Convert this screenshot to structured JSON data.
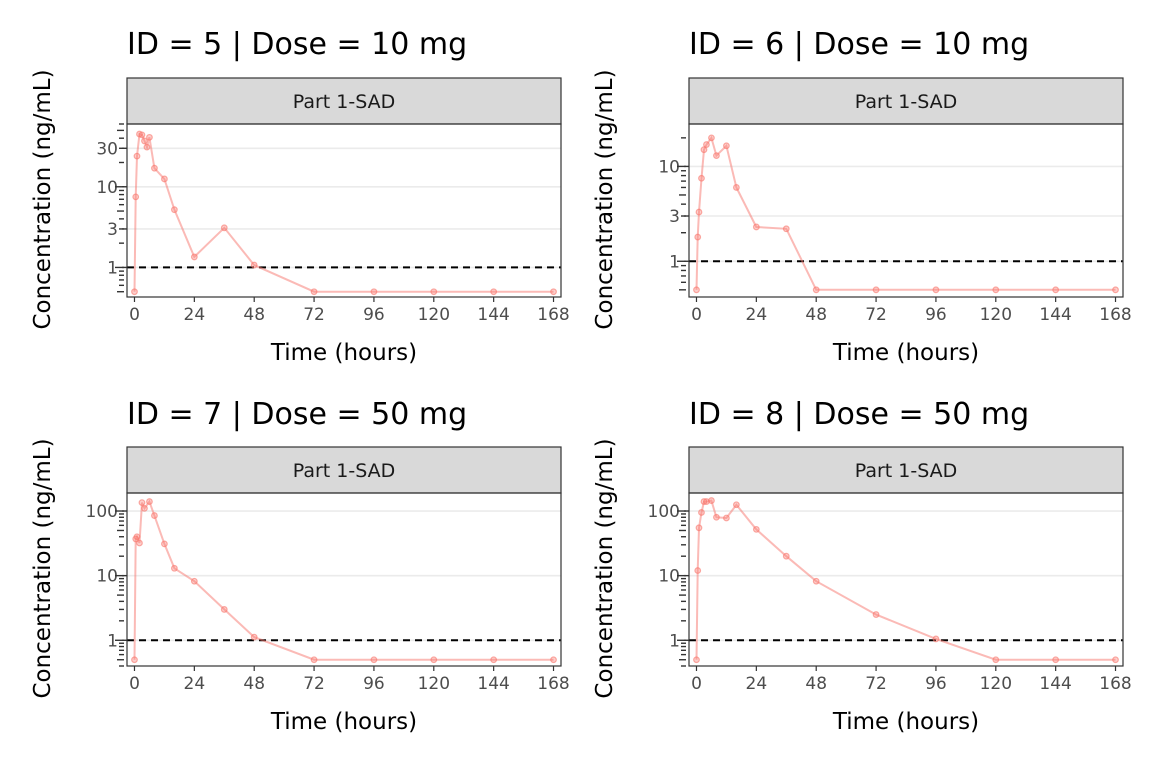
{
  "chart_data": [
    {
      "type": "line",
      "title": "ID = 5 | Dose = 10 mg",
      "strip": "Part 1-SAD",
      "xlabel": "Time (hours)",
      "ylabel": "Concentration (ng/mL)",
      "y_scale": "log10",
      "xlim": [
        -3,
        171
      ],
      "ylim": [
        0.43,
        60
      ],
      "x_ticks": [
        0,
        24,
        48,
        72,
        96,
        120,
        144,
        168
      ],
      "y_ticks": [
        1,
        3,
        10,
        30
      ],
      "reference_line": {
        "y": 1,
        "style": "dashed",
        "color": "#000000"
      },
      "series": [
        {
          "color": "#f8766d",
          "x": [
            0,
            0.5,
            1,
            2,
            3,
            4,
            5,
            6,
            8,
            12,
            16,
            24,
            36,
            48,
            72,
            96,
            120,
            144,
            168
          ],
          "y": [
            0.5,
            7.5,
            24,
            45,
            44,
            37,
            31,
            41,
            17,
            12.5,
            5.2,
            1.35,
            3.1,
            1.07,
            0.5,
            0.5,
            0.5,
            0.5,
            0.5
          ]
        }
      ]
    },
    {
      "type": "line",
      "title": "ID = 6 | Dose = 10 mg",
      "strip": "Part 1-SAD",
      "xlabel": "Time (hours)",
      "ylabel": "Concentration (ng/mL)",
      "y_scale": "log10",
      "xlim": [
        -3,
        171
      ],
      "ylim": [
        0.42,
        28
      ],
      "x_ticks": [
        0,
        24,
        48,
        72,
        96,
        120,
        144,
        168
      ],
      "y_ticks": [
        1,
        3,
        10
      ],
      "reference_line": {
        "y": 1,
        "style": "dashed",
        "color": "#000000"
      },
      "series": [
        {
          "color": "#f8766d",
          "x": [
            0,
            0.5,
            1,
            2,
            3,
            4,
            6,
            8,
            12,
            16,
            24,
            36,
            48,
            72,
            96,
            120,
            144,
            168
          ],
          "y": [
            0.5,
            1.8,
            3.3,
            7.5,
            15,
            17,
            20,
            13,
            16.5,
            6,
            2.3,
            2.2,
            0.5,
            0.5,
            0.5,
            0.5,
            0.5,
            0.5
          ]
        }
      ]
    },
    {
      "type": "line",
      "title": "ID = 7 | Dose = 50 mg",
      "strip": "Part 1-SAD",
      "xlabel": "Time (hours)",
      "ylabel": "Concentration (ng/mL)",
      "y_scale": "log10",
      "xlim": [
        -3,
        171
      ],
      "ylim": [
        0.4,
        190
      ],
      "x_ticks": [
        0,
        24,
        48,
        72,
        96,
        120,
        144,
        168
      ],
      "y_ticks": [
        1,
        10,
        100
      ],
      "reference_line": {
        "y": 1,
        "style": "dashed",
        "color": "#000000"
      },
      "series": [
        {
          "color": "#f8766d",
          "x": [
            0,
            0.5,
            1,
            2,
            3,
            4,
            6,
            8,
            12,
            16,
            24,
            36,
            48,
            72,
            96,
            120,
            144,
            168
          ],
          "y": [
            0.5,
            37,
            40,
            32,
            135,
            110,
            140,
            85,
            31,
            13,
            8.2,
            3,
            1.12,
            0.5,
            0.5,
            0.5,
            0.5,
            0.5
          ]
        }
      ]
    },
    {
      "type": "line",
      "title": "ID = 8 | Dose = 50 mg",
      "strip": "Part 1-SAD",
      "xlabel": "Time (hours)",
      "ylabel": "Concentration (ng/mL)",
      "y_scale": "log10",
      "xlim": [
        -3,
        171
      ],
      "ylim": [
        0.4,
        190
      ],
      "x_ticks": [
        0,
        24,
        48,
        72,
        96,
        120,
        144,
        168
      ],
      "y_ticks": [
        1,
        10,
        100
      ],
      "reference_line": {
        "y": 1,
        "style": "dashed",
        "color": "#000000"
      },
      "series": [
        {
          "color": "#f8766d",
          "x": [
            0,
            0.5,
            1,
            2,
            3,
            4,
            6,
            8,
            12,
            16,
            24,
            36,
            48,
            72,
            96,
            120,
            144,
            168
          ],
          "y": [
            0.5,
            12,
            55,
            95,
            140,
            140,
            145,
            80,
            78,
            125,
            52,
            20,
            8.2,
            2.5,
            1.05,
            0.5,
            0.5,
            0.5
          ]
        }
      ]
    }
  ]
}
